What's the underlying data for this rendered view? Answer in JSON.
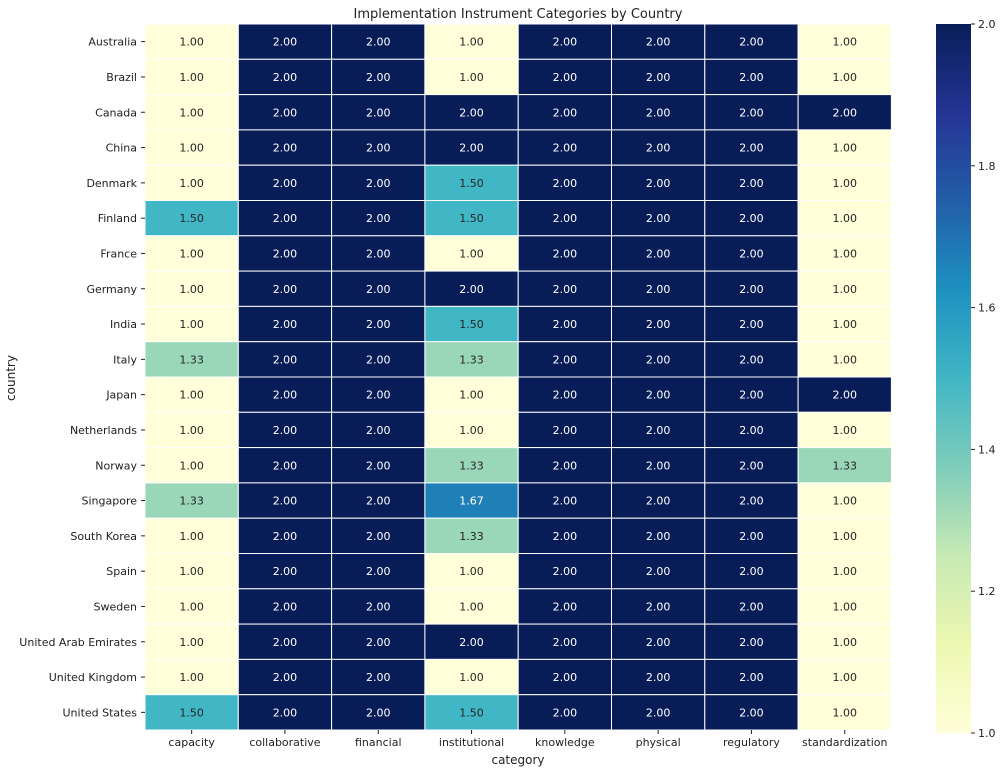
{
  "chart_data": {
    "type": "heatmap",
    "title": "Implementation Instrument Categories by Country",
    "xlabel": "category",
    "ylabel": "country",
    "categories": [
      "capacity",
      "collaborative",
      "financial",
      "institutional",
      "knowledge",
      "physical",
      "regulatory",
      "standardization"
    ],
    "rows": [
      "Australia",
      "Brazil",
      "Canada",
      "China",
      "Denmark",
      "Finland",
      "France",
      "Germany",
      "India",
      "Italy",
      "Japan",
      "Netherlands",
      "Norway",
      "Singapore",
      "South Korea",
      "Spain",
      "Sweden",
      "United Arab Emirates",
      "United Kingdom",
      "United States"
    ],
    "values": [
      [
        1.0,
        2.0,
        2.0,
        1.0,
        2.0,
        2.0,
        2.0,
        1.0
      ],
      [
        1.0,
        2.0,
        2.0,
        1.0,
        2.0,
        2.0,
        2.0,
        1.0
      ],
      [
        1.0,
        2.0,
        2.0,
        2.0,
        2.0,
        2.0,
        2.0,
        2.0
      ],
      [
        1.0,
        2.0,
        2.0,
        2.0,
        2.0,
        2.0,
        2.0,
        1.0
      ],
      [
        1.0,
        2.0,
        2.0,
        1.5,
        2.0,
        2.0,
        2.0,
        1.0
      ],
      [
        1.5,
        2.0,
        2.0,
        1.5,
        2.0,
        2.0,
        2.0,
        1.0
      ],
      [
        1.0,
        2.0,
        2.0,
        1.0,
        2.0,
        2.0,
        2.0,
        1.0
      ],
      [
        1.0,
        2.0,
        2.0,
        2.0,
        2.0,
        2.0,
        2.0,
        1.0
      ],
      [
        1.0,
        2.0,
        2.0,
        1.5,
        2.0,
        2.0,
        2.0,
        1.0
      ],
      [
        1.33,
        2.0,
        2.0,
        1.33,
        2.0,
        2.0,
        2.0,
        1.0
      ],
      [
        1.0,
        2.0,
        2.0,
        1.0,
        2.0,
        2.0,
        2.0,
        2.0
      ],
      [
        1.0,
        2.0,
        2.0,
        1.0,
        2.0,
        2.0,
        2.0,
        1.0
      ],
      [
        1.0,
        2.0,
        2.0,
        1.33,
        2.0,
        2.0,
        2.0,
        1.33
      ],
      [
        1.33,
        2.0,
        2.0,
        1.67,
        2.0,
        2.0,
        2.0,
        1.0
      ],
      [
        1.0,
        2.0,
        2.0,
        1.33,
        2.0,
        2.0,
        2.0,
        1.0
      ],
      [
        1.0,
        2.0,
        2.0,
        1.0,
        2.0,
        2.0,
        2.0,
        1.0
      ],
      [
        1.0,
        2.0,
        2.0,
        1.0,
        2.0,
        2.0,
        2.0,
        1.0
      ],
      [
        1.0,
        2.0,
        2.0,
        2.0,
        2.0,
        2.0,
        2.0,
        1.0
      ],
      [
        1.0,
        2.0,
        2.0,
        1.0,
        2.0,
        2.0,
        2.0,
        1.0
      ],
      [
        1.5,
        2.0,
        2.0,
        1.5,
        2.0,
        2.0,
        2.0,
        1.0
      ]
    ],
    "colorbar": {
      "range": [
        1.0,
        2.0
      ],
      "ticks": [
        "1.0",
        "1.2",
        "1.4",
        "1.6",
        "1.8",
        "2.0"
      ],
      "colormap": "YlGnBu"
    },
    "grid": false,
    "legend": "colorbar-right"
  }
}
